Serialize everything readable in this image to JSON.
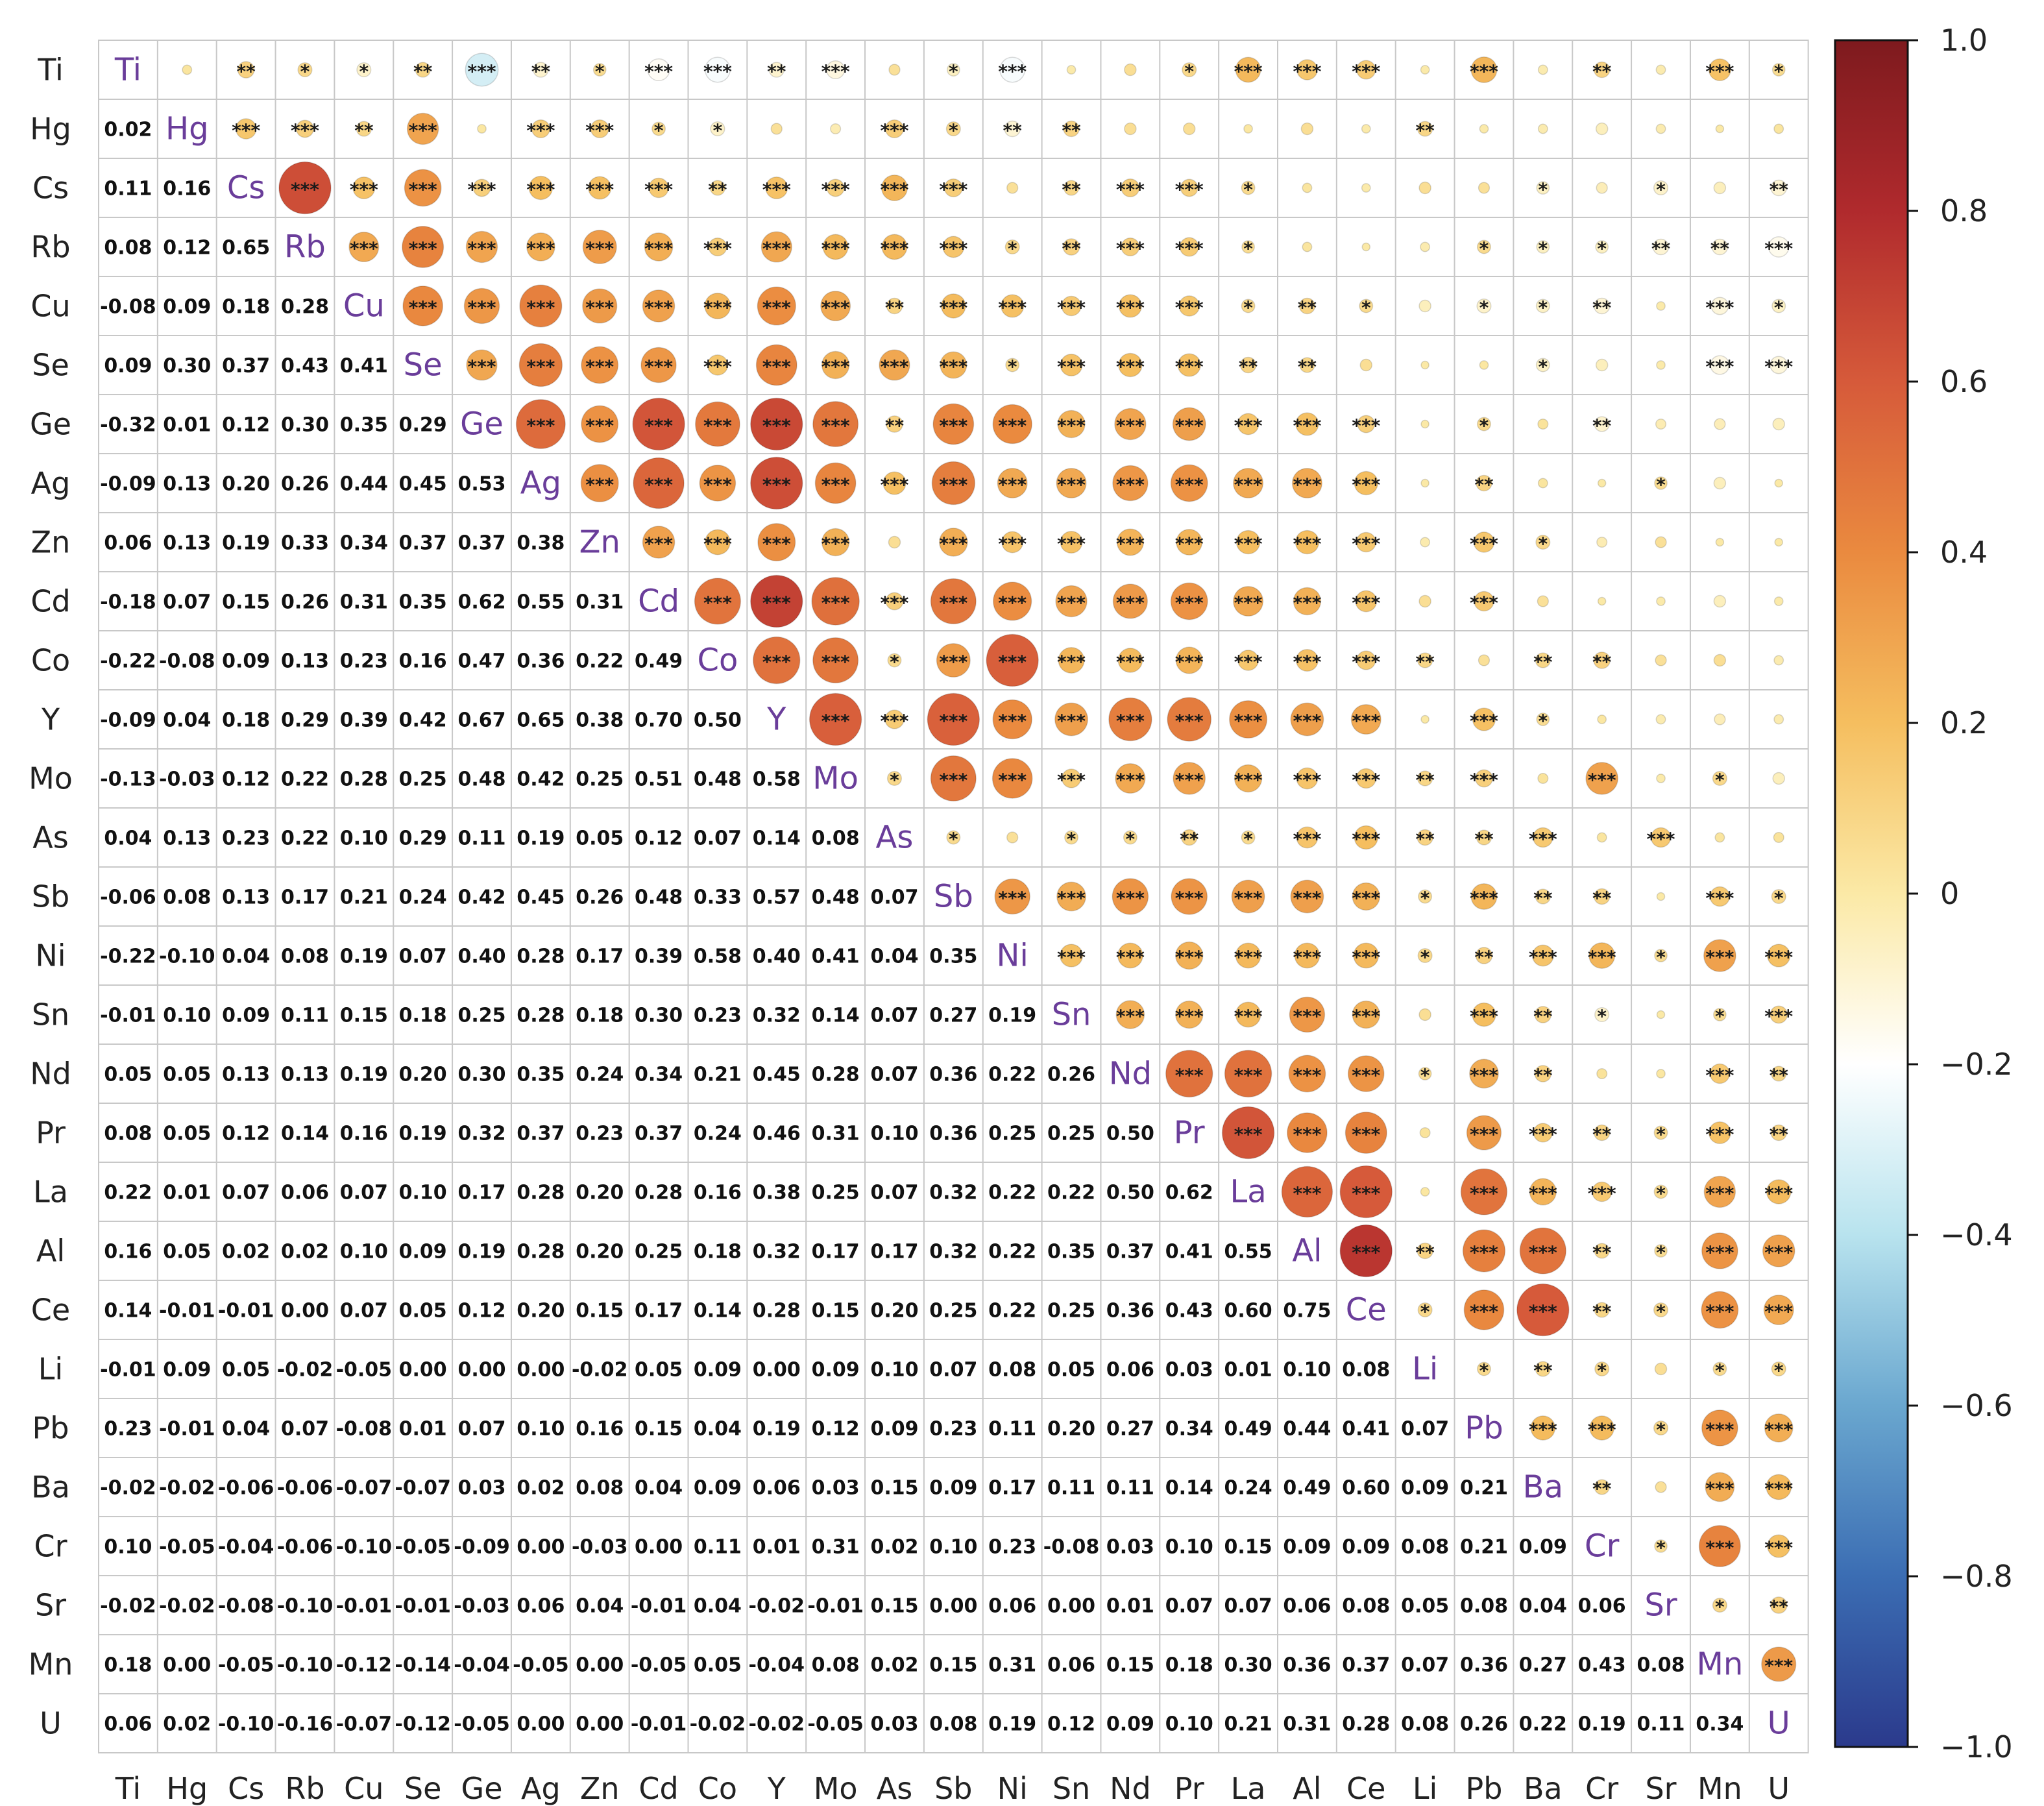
{
  "chart_data": {
    "type": "heatmap",
    "variables": [
      "Ti",
      "Hg",
      "Cs",
      "Rb",
      "Cu",
      "Se",
      "Ge",
      "Ag",
      "Zn",
      "Cd",
      "Co",
      "Y",
      "Mo",
      "As",
      "Sb",
      "Ni",
      "Sn",
      "Nd",
      "Pr",
      "La",
      "Al",
      "Ce",
      "Li",
      "Pb",
      "Ba",
      "Cr",
      "Sr",
      "Mn",
      "U"
    ],
    "lower_triangle_values": [
      [
        0.02
      ],
      [
        0.11,
        0.16
      ],
      [
        0.08,
        0.12,
        0.65
      ],
      [
        -0.08,
        0.09,
        0.18,
        0.28
      ],
      [
        0.09,
        0.3,
        0.37,
        0.43,
        0.41
      ],
      [
        -0.32,
        0.01,
        0.12,
        0.3,
        0.35,
        0.29
      ],
      [
        -0.09,
        0.13,
        0.2,
        0.26,
        0.44,
        0.45,
        0.53
      ],
      [
        0.06,
        0.13,
        0.19,
        0.33,
        0.34,
        0.37,
        0.37,
        0.38
      ],
      [
        -0.18,
        0.07,
        0.15,
        0.26,
        0.31,
        0.35,
        0.62,
        0.55,
        0.31
      ],
      [
        -0.22,
        -0.08,
        0.09,
        0.13,
        0.23,
        0.16,
        0.47,
        0.36,
        0.22,
        0.49
      ],
      [
        -0.09,
        0.04,
        0.18,
        0.29,
        0.39,
        0.42,
        0.67,
        0.65,
        0.38,
        0.7,
        0.5
      ],
      [
        -0.13,
        -0.03,
        0.12,
        0.22,
        0.28,
        0.25,
        0.48,
        0.42,
        0.25,
        0.51,
        0.48,
        0.58
      ],
      [
        0.04,
        0.13,
        0.23,
        0.22,
        0.1,
        0.29,
        0.11,
        0.19,
        0.05,
        0.12,
        0.07,
        0.14,
        0.08
      ],
      [
        -0.06,
        0.08,
        0.13,
        0.17,
        0.21,
        0.24,
        0.42,
        0.45,
        0.26,
        0.48,
        0.33,
        0.57,
        0.48,
        0.07
      ],
      [
        -0.22,
        -0.1,
        0.04,
        0.08,
        0.19,
        0.07,
        0.4,
        0.28,
        0.17,
        0.39,
        0.58,
        0.4,
        0.41,
        0.04,
        0.35
      ],
      [
        -0.01,
        0.1,
        0.09,
        0.11,
        0.15,
        0.18,
        0.25,
        0.28,
        0.18,
        0.3,
        0.23,
        0.32,
        0.14,
        0.07,
        0.27,
        0.19
      ],
      [
        0.05,
        0.05,
        0.13,
        0.13,
        0.19,
        0.2,
        0.3,
        0.35,
        0.24,
        0.34,
        0.21,
        0.45,
        0.28,
        0.07,
        0.36,
        0.22,
        0.26
      ],
      [
        0.08,
        0.05,
        0.12,
        0.14,
        0.16,
        0.19,
        0.32,
        0.37,
        0.23,
        0.37,
        0.24,
        0.46,
        0.31,
        0.1,
        0.36,
        0.25,
        0.25,
        0.5
      ],
      [
        0.22,
        0.01,
        0.07,
        0.06,
        0.07,
        0.1,
        0.17,
        0.28,
        0.2,
        0.28,
        0.16,
        0.38,
        0.25,
        0.07,
        0.32,
        0.22,
        0.22,
        0.5,
        0.62
      ],
      [
        0.16,
        0.05,
        0.02,
        0.02,
        0.1,
        0.09,
        0.19,
        0.28,
        0.2,
        0.25,
        0.18,
        0.32,
        0.17,
        0.17,
        0.32,
        0.22,
        0.35,
        0.37,
        0.41,
        0.55
      ],
      [
        0.14,
        -0.01,
        -0.01,
        0.0,
        0.07,
        0.05,
        0.12,
        0.2,
        0.15,
        0.17,
        0.14,
        0.28,
        0.15,
        0.2,
        0.25,
        0.22,
        0.25,
        0.36,
        0.43,
        0.6,
        0.75
      ],
      [
        -0.01,
        0.09,
        0.05,
        -0.02,
        -0.05,
        0.0,
        0.0,
        0.0,
        -0.02,
        0.05,
        0.09,
        0.0,
        0.09,
        0.1,
        0.07,
        0.08,
        0.05,
        0.06,
        0.03,
        0.01,
        0.1,
        0.08
      ],
      [
        0.23,
        -0.01,
        0.04,
        0.07,
        -0.08,
        0.01,
        0.07,
        0.1,
        0.16,
        0.15,
        0.04,
        0.19,
        0.12,
        0.09,
        0.23,
        0.11,
        0.2,
        0.27,
        0.34,
        0.49,
        0.44,
        0.41,
        0.07
      ],
      [
        -0.02,
        -0.02,
        -0.06,
        -0.06,
        -0.07,
        -0.07,
        0.03,
        0.02,
        0.08,
        0.04,
        0.09,
        0.06,
        0.03,
        0.15,
        0.09,
        0.17,
        0.11,
        0.11,
        0.14,
        0.24,
        0.49,
        0.6,
        0.09,
        0.21
      ],
      [
        0.1,
        -0.05,
        -0.04,
        -0.06,
        -0.1,
        -0.05,
        -0.09,
        0.0,
        -0.03,
        0.0,
        0.11,
        0.01,
        0.31,
        0.02,
        0.1,
        0.23,
        -0.08,
        0.03,
        0.1,
        0.15,
        0.09,
        0.09,
        0.08,
        0.21,
        0.09
      ],
      [
        -0.02,
        -0.02,
        -0.08,
        -0.1,
        -0.01,
        -0.01,
        -0.03,
        0.06,
        0.04,
        -0.01,
        0.04,
        -0.02,
        -0.01,
        0.15,
        0.0,
        0.06,
        0.0,
        0.01,
        0.07,
        0.07,
        0.06,
        0.08,
        0.05,
        0.08,
        0.04,
        0.06
      ],
      [
        0.18,
        0.0,
        -0.05,
        -0.1,
        -0.12,
        -0.14,
        -0.04,
        -0.05,
        0.0,
        -0.05,
        0.05,
        -0.04,
        0.08,
        0.02,
        0.15,
        0.31,
        0.06,
        0.15,
        0.18,
        0.3,
        0.36,
        0.37,
        0.07,
        0.36,
        0.27,
        0.43,
        0.08
      ],
      [
        0.06,
        0.02,
        -0.1,
        -0.16,
        -0.07,
        -0.12,
        -0.05,
        0.0,
        0.0,
        -0.01,
        -0.02,
        -0.02,
        -0.05,
        0.03,
        0.08,
        0.19,
        0.12,
        0.09,
        0.1,
        0.21,
        0.31,
        0.28,
        0.08,
        0.26,
        0.22,
        0.19,
        0.11,
        0.34
      ]
    ],
    "upper_significance": "row i col j (j>i) shows circle sized and colored by r, with star marks: *** |r|>=0.12, ** |r|>=0.09, * |r|>=0.06",
    "colorbar": {
      "min": -1.0,
      "max": 1.0,
      "tick_labels": [
        "1.0",
        "0.8",
        "0.6",
        "0.4",
        "0.2",
        "0",
        "−0.2",
        "−0.4",
        "−0.6",
        "−0.8",
        "−1.0"
      ],
      "colors": [
        "#2b3a8c",
        "#3b6db3",
        "#6aa7cf",
        "#b8e3ee",
        "#ffffff",
        "#fbe9a6",
        "#f5be5f",
        "#ea8a3f",
        "#d65a3a",
        "#b02a2d",
        "#7e1a1e"
      ]
    },
    "diagonal_label_color": "#6a3d9a",
    "grid_color": "#c8c8c8"
  }
}
